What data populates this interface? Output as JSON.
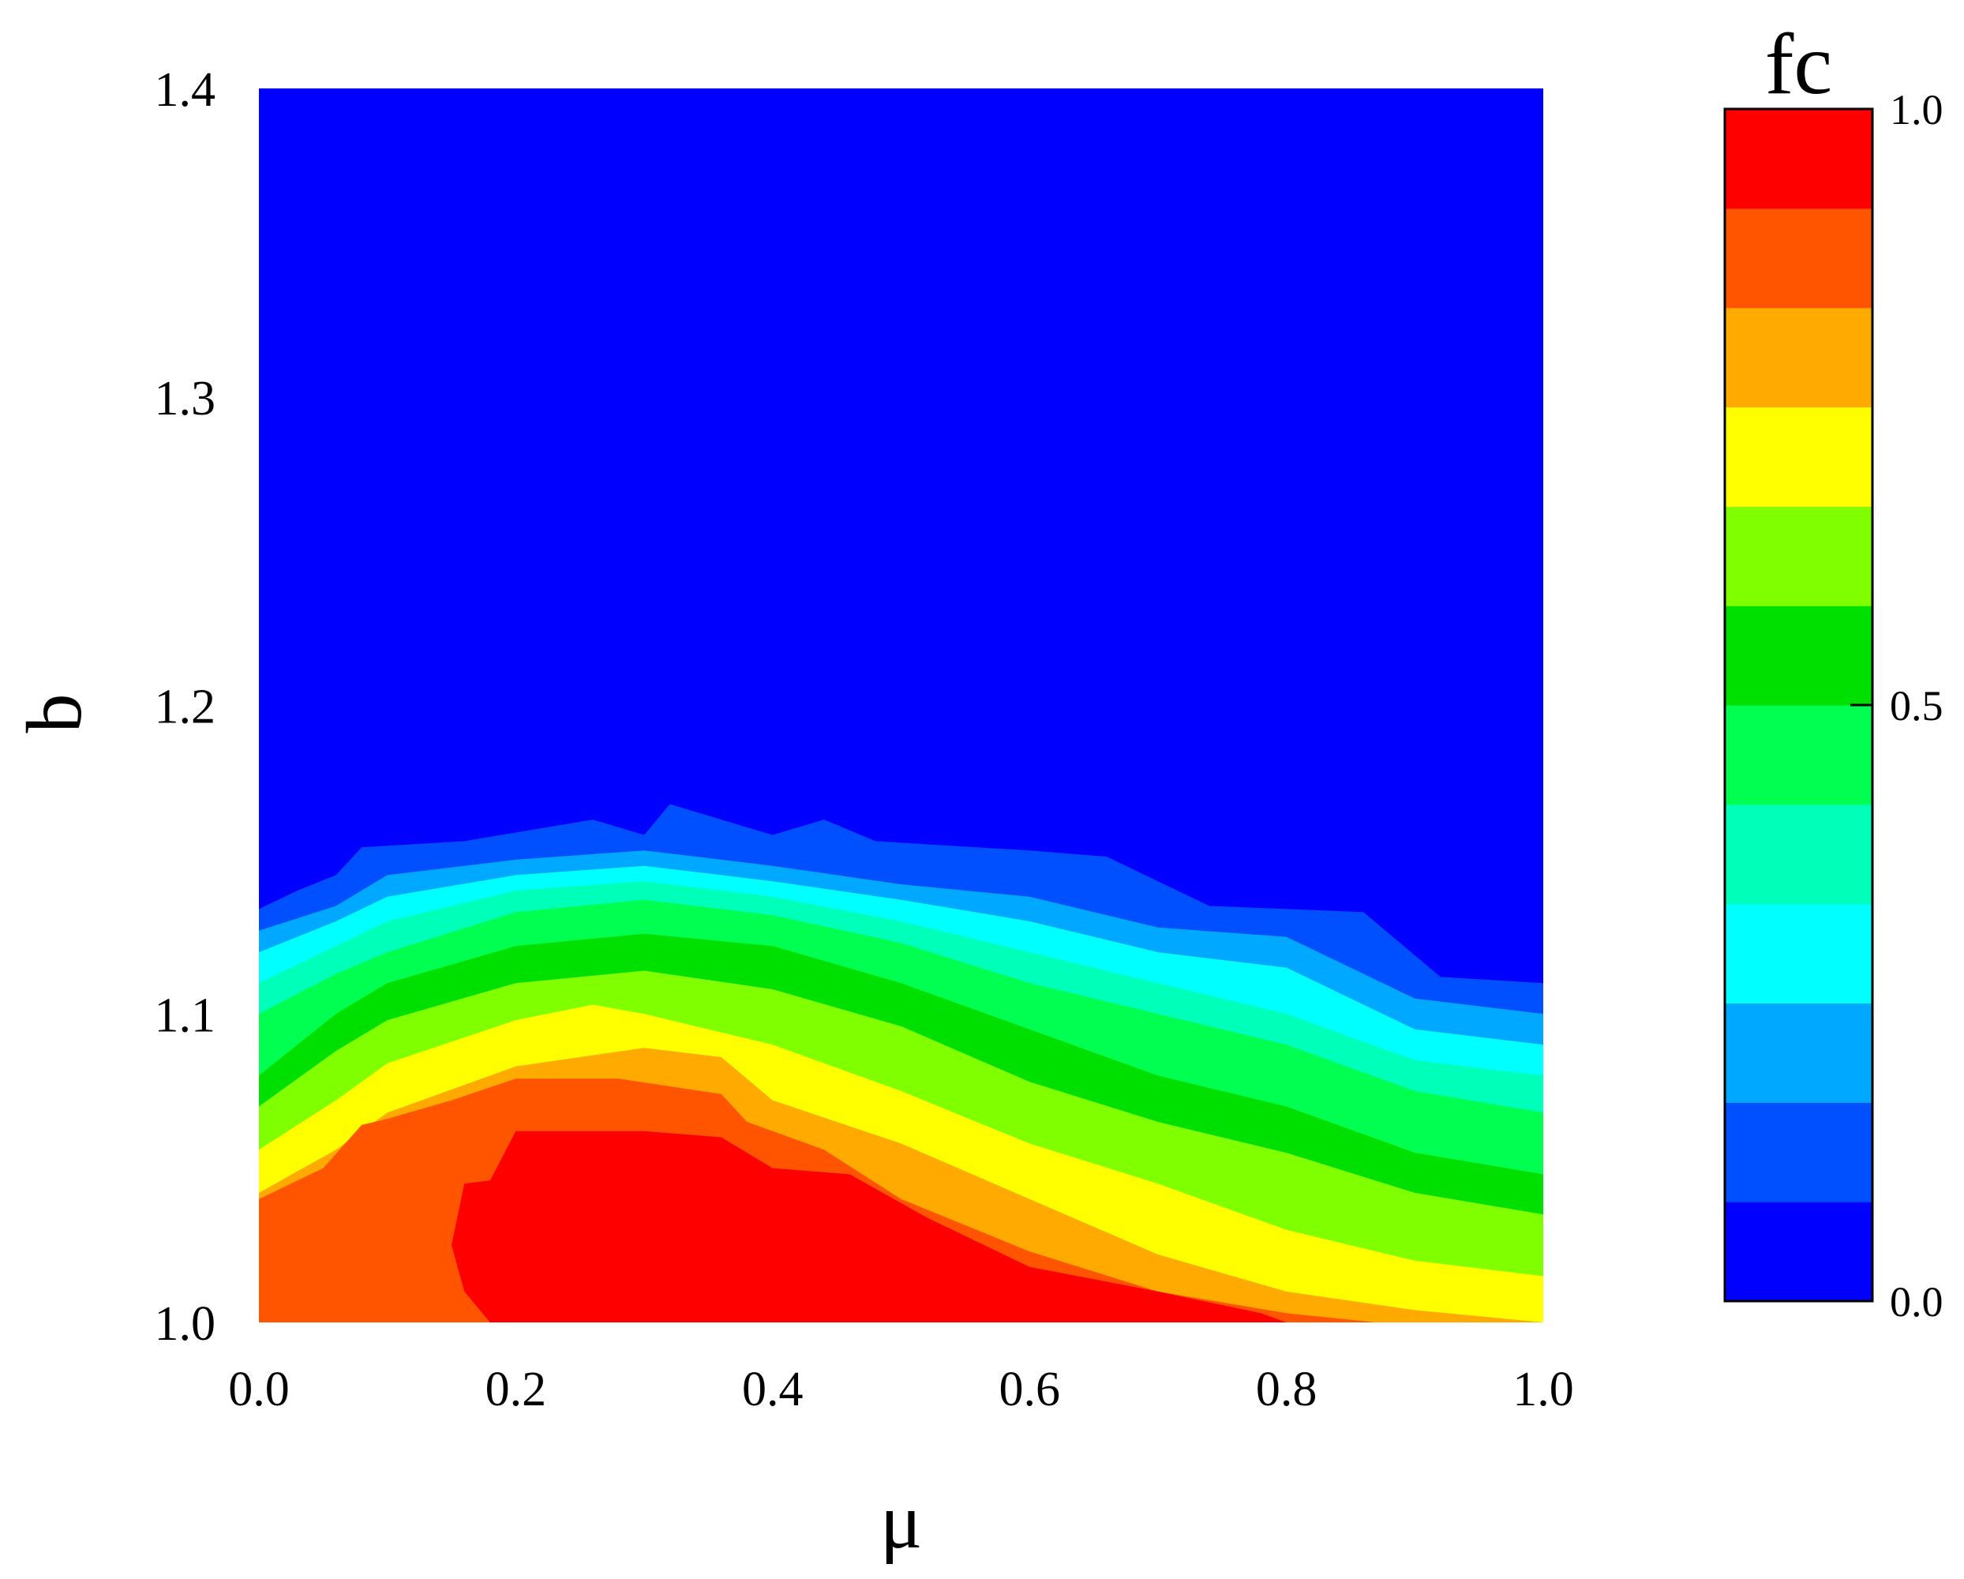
{
  "chart_data": {
    "type": "contour",
    "xlabel": "μ",
    "ylabel": "b",
    "xlim": [
      0.0,
      1.0
    ],
    "ylim": [
      1.0,
      1.4
    ],
    "x_ticks": [
      "0.0",
      "0.2",
      "0.4",
      "0.6",
      "0.8",
      "1.0"
    ],
    "y_ticks": [
      "1.0",
      "1.1",
      "1.2",
      "1.3",
      "1.4"
    ],
    "colorbar": {
      "title": "fc",
      "range": [
        0.0,
        1.0
      ],
      "ticks": [
        "0.0",
        "0.5",
        "1.0"
      ],
      "levels": [
        0.0,
        0.083,
        0.167,
        0.25,
        0.333,
        0.417,
        0.5,
        0.583,
        0.667,
        0.75,
        0.833,
        0.917,
        1.0
      ],
      "colors": [
        "#0000ff",
        "#0050ff",
        "#00a8ff",
        "#00ffff",
        "#00ffb8",
        "#00ff50",
        "#00e000",
        "#80ff00",
        "#ffff00",
        "#ffaa00",
        "#ff5500",
        "#ff0000"
      ]
    },
    "contour_boundaries": [
      {
        "level": 0.083,
        "x": [
          0.0,
          0.03,
          0.06,
          0.08,
          0.16,
          0.26,
          0.3,
          0.32,
          0.36,
          0.4,
          0.44,
          0.48,
          0.6,
          0.66,
          0.7,
          0.74,
          0.86,
          0.92,
          1.0
        ],
        "y": [
          1.134,
          1.14,
          1.145,
          1.154,
          1.156,
          1.163,
          1.158,
          1.168,
          1.163,
          1.158,
          1.163,
          1.156,
          1.153,
          1.151,
          1.143,
          1.135,
          1.133,
          1.112,
          1.11
        ]
      },
      {
        "level": 0.167,
        "x": [
          0.0,
          0.06,
          0.1,
          0.2,
          0.3,
          0.4,
          0.5,
          0.6,
          0.7,
          0.8,
          0.9,
          1.0
        ],
        "y": [
          1.127,
          1.135,
          1.145,
          1.15,
          1.153,
          1.148,
          1.142,
          1.138,
          1.128,
          1.125,
          1.105,
          1.1
        ]
      },
      {
        "level": 0.25,
        "x": [
          0.0,
          0.06,
          0.1,
          0.2,
          0.3,
          0.4,
          0.5,
          0.6,
          0.7,
          0.8,
          0.9,
          1.0
        ],
        "y": [
          1.12,
          1.13,
          1.138,
          1.145,
          1.148,
          1.143,
          1.137,
          1.13,
          1.12,
          1.115,
          1.095,
          1.09
        ]
      },
      {
        "level": 0.333,
        "x": [
          0.0,
          0.06,
          0.1,
          0.2,
          0.3,
          0.4,
          0.5,
          0.6,
          0.7,
          0.8,
          0.9,
          1.0
        ],
        "y": [
          1.11,
          1.122,
          1.13,
          1.14,
          1.143,
          1.138,
          1.13,
          1.12,
          1.11,
          1.1,
          1.085,
          1.08
        ]
      },
      {
        "level": 0.417,
        "x": [
          0.0,
          0.06,
          0.1,
          0.2,
          0.3,
          0.4,
          0.5,
          0.6,
          0.7,
          0.8,
          0.9,
          1.0
        ],
        "y": [
          1.1,
          1.113,
          1.12,
          1.133,
          1.137,
          1.132,
          1.123,
          1.11,
          1.1,
          1.09,
          1.075,
          1.068
        ]
      },
      {
        "level": 0.5,
        "x": [
          0.0,
          0.06,
          0.1,
          0.2,
          0.3,
          0.4,
          0.5,
          0.6,
          0.7,
          0.8,
          0.9,
          1.0
        ],
        "y": [
          1.08,
          1.1,
          1.11,
          1.122,
          1.126,
          1.122,
          1.11,
          1.095,
          1.08,
          1.07,
          1.055,
          1.048
        ]
      },
      {
        "level": 0.583,
        "x": [
          0.0,
          0.06,
          0.1,
          0.2,
          0.3,
          0.4,
          0.5,
          0.6,
          0.7,
          0.8,
          0.9,
          1.0
        ],
        "y": [
          1.07,
          1.088,
          1.098,
          1.11,
          1.114,
          1.108,
          1.096,
          1.078,
          1.065,
          1.055,
          1.042,
          1.035
        ]
      },
      {
        "level": 0.667,
        "x": [
          0.0,
          0.06,
          0.1,
          0.2,
          0.26,
          0.3,
          0.4,
          0.5,
          0.6,
          0.7,
          0.8,
          0.9,
          1.0
        ],
        "y": [
          1.056,
          1.072,
          1.084,
          1.098,
          1.103,
          1.1,
          1.09,
          1.075,
          1.058,
          1.045,
          1.03,
          1.02,
          1.015
        ]
      },
      {
        "level": 0.75,
        "x": [
          0.0,
          0.06,
          0.1,
          0.2,
          0.3,
          0.36,
          0.4,
          0.5,
          0.6,
          0.7,
          0.8,
          0.9,
          1.0
        ],
        "y": [
          1.042,
          1.056,
          1.068,
          1.083,
          1.089,
          1.086,
          1.072,
          1.058,
          1.04,
          1.022,
          1.01,
          1.004,
          1.0
        ]
      },
      {
        "level": 0.833,
        "x": [
          0.0,
          0.05,
          0.08,
          0.1,
          0.15,
          0.2,
          0.26,
          0.28,
          0.36,
          0.38,
          0.44,
          0.5,
          0.6,
          0.7,
          0.8,
          0.87
        ],
        "y": [
          1.04,
          1.05,
          1.064,
          1.066,
          1.072,
          1.079,
          1.079,
          1.079,
          1.074,
          1.065,
          1.056,
          1.04,
          1.023,
          1.01,
          1.003,
          1.0
        ]
      },
      {
        "level": 0.917,
        "x": [
          0.18,
          0.16,
          0.15,
          0.16,
          0.18,
          0.2,
          0.3,
          0.36,
          0.4,
          0.46,
          0.52,
          0.6,
          0.7,
          0.78,
          0.8
        ],
        "y": [
          1.0,
          1.01,
          1.025,
          1.045,
          1.046,
          1.062,
          1.062,
          1.06,
          1.05,
          1.048,
          1.034,
          1.018,
          1.01,
          1.003,
          1.0
        ]
      }
    ]
  }
}
